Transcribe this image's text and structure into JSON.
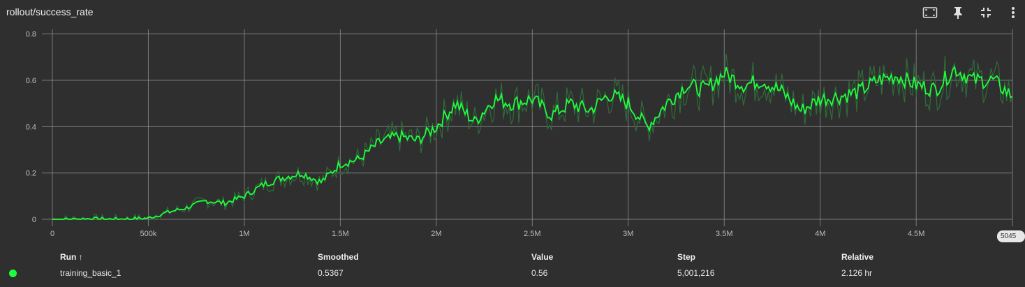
{
  "header": {
    "title": "rollout/success_rate",
    "icons": [
      "fit-domain-icon",
      "pin-icon",
      "collapse-icon",
      "more-vert-icon"
    ]
  },
  "chart_data": {
    "type": "line",
    "title": "rollout/success_rate",
    "xlabel": "",
    "ylabel": "",
    "x_tick_labels": [
      "0",
      "500k",
      "1M",
      "1.5M",
      "2M",
      "2.5M",
      "3M",
      "3.5M",
      "4M",
      "4.5M"
    ],
    "y_tick_labels": [
      "0",
      "0.2",
      "0.4",
      "0.6",
      "0.8"
    ],
    "xlim": [
      0,
      5001216
    ],
    "ylim": [
      -0.03,
      0.82
    ],
    "grid": true,
    "end_step_label": "5045",
    "colors": {
      "smoothed": "#1dff3c",
      "raw": "#2f6b3a",
      "grid": "#9a9a9a",
      "axis": "#bdbdbd"
    },
    "series": [
      {
        "name": "training_basic_1",
        "x": [
          0,
          100000,
          200000,
          300000,
          400000,
          500000,
          600000,
          700000,
          800000,
          900000,
          1000000,
          1100000,
          1200000,
          1300000,
          1400000,
          1500000,
          1600000,
          1700000,
          1800000,
          1900000,
          2000000,
          2100000,
          2200000,
          2300000,
          2400000,
          2500000,
          2600000,
          2700000,
          2800000,
          2900000,
          3000000,
          3100000,
          3200000,
          3300000,
          3400000,
          3500000,
          3600000,
          3700000,
          3800000,
          3900000,
          4000000,
          4100000,
          4200000,
          4300000,
          4400000,
          4500000,
          4600000,
          4700000,
          4800000,
          4900000,
          5001216
        ],
        "values": [
          0.0,
          0.0,
          0.003,
          0.0,
          0.002,
          0.005,
          0.03,
          0.05,
          0.08,
          0.07,
          0.1,
          0.15,
          0.18,
          0.2,
          0.16,
          0.24,
          0.26,
          0.33,
          0.36,
          0.34,
          0.4,
          0.5,
          0.42,
          0.52,
          0.5,
          0.52,
          0.45,
          0.5,
          0.47,
          0.54,
          0.5,
          0.4,
          0.5,
          0.58,
          0.56,
          0.63,
          0.58,
          0.6,
          0.55,
          0.47,
          0.52,
          0.53,
          0.55,
          0.6,
          0.62,
          0.58,
          0.56,
          0.65,
          0.6,
          0.6,
          0.53
        ]
      }
    ]
  },
  "table": {
    "headers": {
      "run": "Run ↑",
      "smoothed": "Smoothed",
      "value": "Value",
      "step": "Step",
      "relative": "Relative"
    },
    "rows": [
      {
        "run": "training_basic_1",
        "smoothed": "0.5367",
        "value": "0.56",
        "step": "5,001,216",
        "relative": "2.126 hr",
        "color": "#1dff3c"
      }
    ]
  }
}
